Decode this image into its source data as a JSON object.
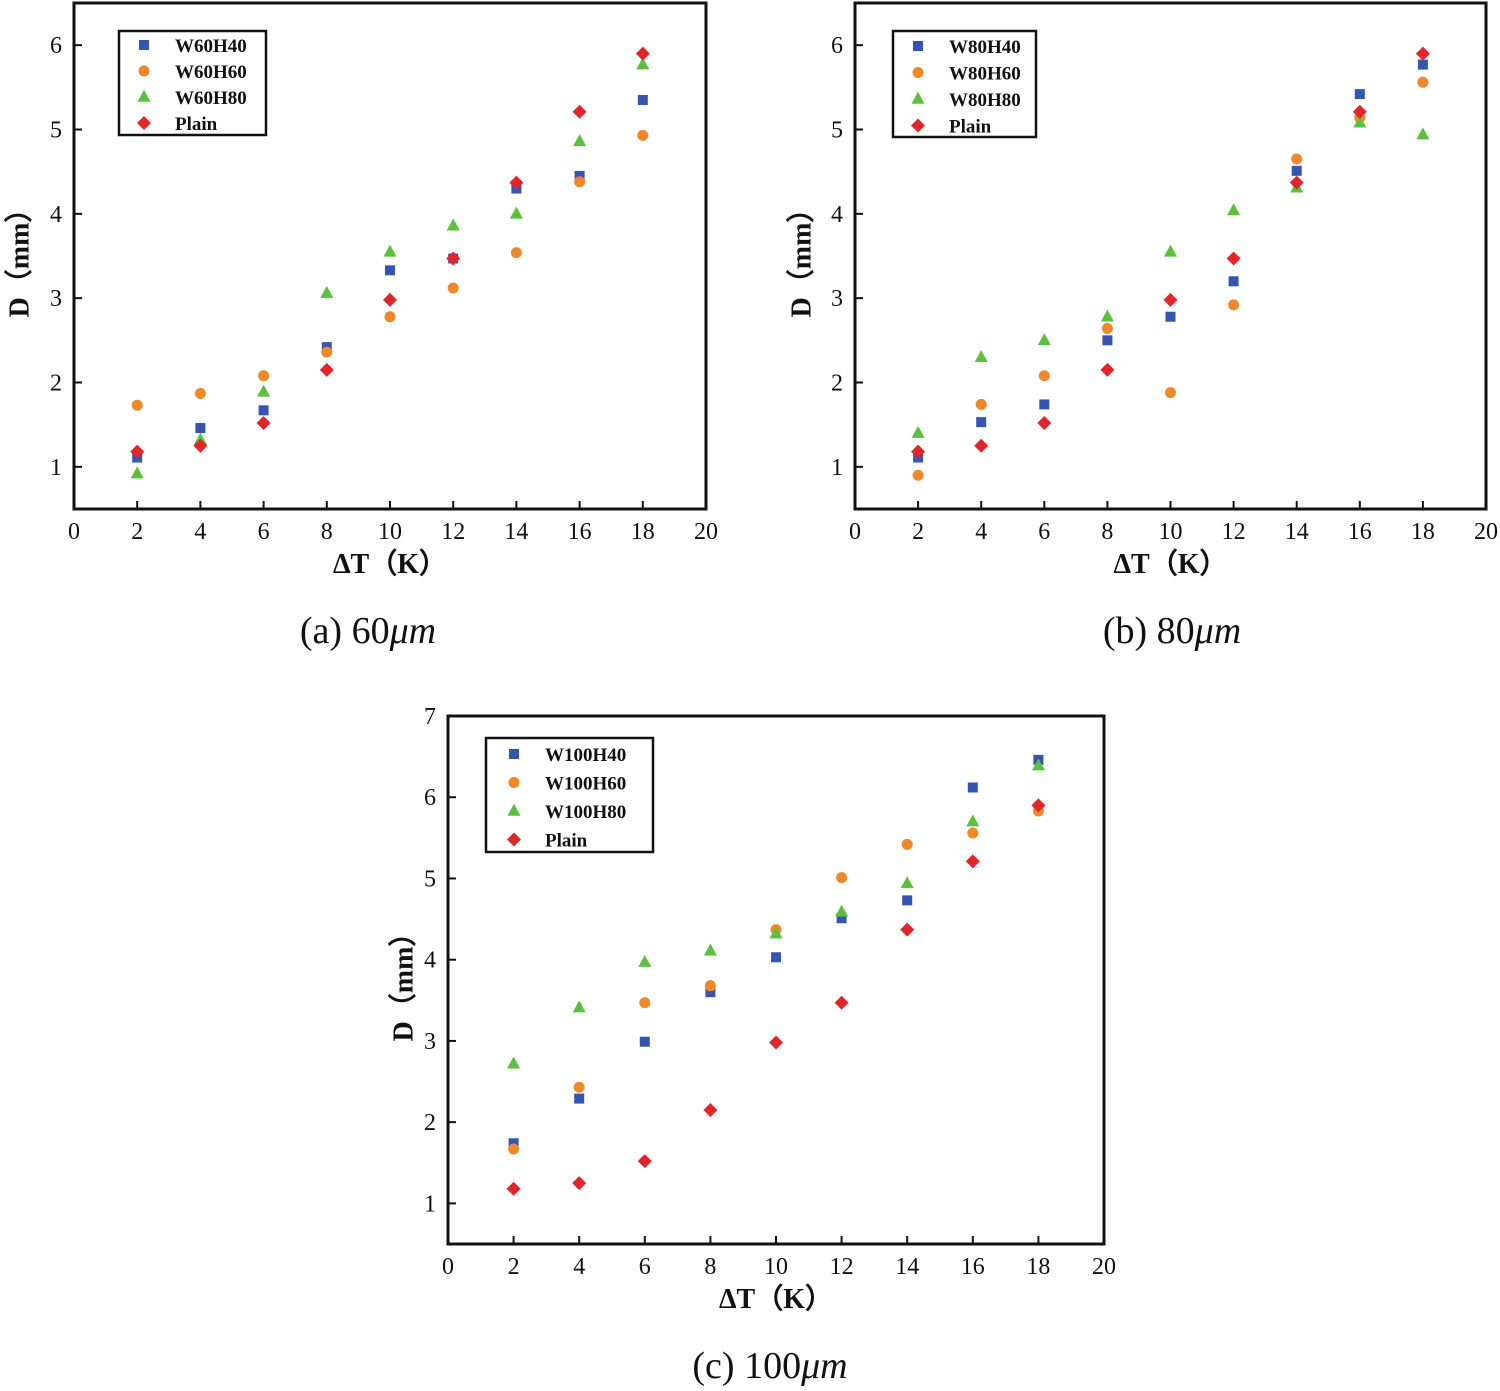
{
  "colors": {
    "W40": "#3455b0",
    "W60": "#f0882a",
    "W80": "#5cbf3e",
    "Plain": "#e0262a",
    "frame": "#111111"
  },
  "marker_shapes": [
    "square",
    "circle",
    "triangle",
    "diamond"
  ],
  "chart_data": [
    {
      "type": "scatter",
      "caption": "(a) 60",
      "caption_unit": "μm",
      "xlabel": "ΔT（K）",
      "ylabel": "D（mm）",
      "xlim": [
        0,
        20
      ],
      "ylim": [
        0.5,
        6.5
      ],
      "xticks": [
        0,
        2,
        4,
        6,
        8,
        10,
        12,
        14,
        16,
        18,
        20
      ],
      "yticks": [
        1,
        2,
        3,
        4,
        5,
        6
      ],
      "legend_position": "top-left",
      "x": [
        2,
        4,
        6,
        8,
        10,
        12,
        14,
        16,
        18
      ],
      "series": [
        {
          "name": "W60H40",
          "marker": "square",
          "color_key": "W40",
          "values": [
            1.11,
            1.46,
            1.67,
            2.42,
            3.33,
            3.47,
            4.3,
            4.45,
            5.35
          ]
        },
        {
          "name": "W60H60",
          "marker": "circle",
          "color_key": "W60",
          "values": [
            1.73,
            1.87,
            2.08,
            2.36,
            2.78,
            3.12,
            3.54,
            4.38,
            4.93
          ]
        },
        {
          "name": "W60H80",
          "marker": "triangle",
          "color_key": "W80",
          "values": [
            0.92,
            1.32,
            1.89,
            3.06,
            3.55,
            3.86,
            4.0,
            4.86,
            5.77
          ]
        },
        {
          "name": "Plain",
          "marker": "diamond",
          "color_key": "Plain",
          "values": [
            1.18,
            1.25,
            1.52,
            2.15,
            2.98,
            3.47,
            4.37,
            5.21,
            5.9
          ]
        }
      ]
    },
    {
      "type": "scatter",
      "caption": "(b) 80",
      "caption_unit": "μm",
      "xlabel": "ΔT（K）",
      "ylabel": "D（mm）",
      "xlim": [
        0,
        20
      ],
      "ylim": [
        0.5,
        6.5
      ],
      "xticks": [
        0,
        2,
        4,
        6,
        8,
        10,
        12,
        14,
        16,
        18,
        20
      ],
      "yticks": [
        1,
        2,
        3,
        4,
        5,
        6
      ],
      "legend_position": "top-left",
      "x": [
        2,
        4,
        6,
        8,
        10,
        12,
        14,
        16,
        18
      ],
      "series": [
        {
          "name": "W80H40",
          "marker": "square",
          "color_key": "W40",
          "values": [
            1.11,
            1.53,
            1.74,
            2.5,
            2.78,
            3.2,
            4.51,
            5.42,
            5.77
          ]
        },
        {
          "name": "W80H60",
          "marker": "circle",
          "color_key": "W60",
          "values": [
            0.9,
            1.74,
            2.08,
            2.64,
            1.88,
            2.92,
            4.65,
            5.14,
            5.56
          ]
        },
        {
          "name": "W80H80",
          "marker": "triangle",
          "color_key": "W80",
          "values": [
            1.4,
            2.3,
            2.5,
            2.78,
            3.55,
            4.04,
            4.31,
            5.08,
            4.94
          ]
        },
        {
          "name": "Plain",
          "marker": "diamond",
          "color_key": "Plain",
          "values": [
            1.18,
            1.25,
            1.52,
            2.15,
            2.98,
            3.47,
            4.37,
            5.21,
            5.9
          ]
        }
      ]
    },
    {
      "type": "scatter",
      "caption": "(c) 100",
      "caption_unit": "μm",
      "xlabel": "ΔT（K）",
      "ylabel": "D（mm）",
      "xlim": [
        0,
        20
      ],
      "ylim": [
        0.5,
        7
      ],
      "xticks": [
        0,
        2,
        4,
        6,
        8,
        10,
        12,
        14,
        16,
        18,
        20
      ],
      "yticks": [
        1,
        2,
        3,
        4,
        5,
        6,
        7
      ],
      "legend_position": "top-left",
      "x": [
        2,
        4,
        6,
        8,
        10,
        12,
        14,
        16,
        18
      ],
      "series": [
        {
          "name": "W100H40",
          "marker": "square",
          "color_key": "W40",
          "values": [
            1.74,
            2.29,
            2.99,
            3.6,
            4.03,
            4.51,
            4.73,
            6.12,
            6.46
          ]
        },
        {
          "name": "W100H60",
          "marker": "circle",
          "color_key": "W60",
          "values": [
            1.67,
            2.43,
            3.47,
            3.68,
            4.37,
            5.01,
            5.42,
            5.56,
            5.83
          ]
        },
        {
          "name": "W100H80",
          "marker": "triangle",
          "color_key": "W80",
          "values": [
            2.72,
            3.41,
            3.97,
            4.11,
            4.32,
            4.59,
            4.94,
            5.7,
            6.39
          ]
        },
        {
          "name": "Plain",
          "marker": "diamond",
          "color_key": "Plain",
          "values": [
            1.18,
            1.25,
            1.52,
            2.15,
            2.98,
            3.47,
            4.37,
            5.21,
            5.9
          ]
        }
      ]
    }
  ]
}
